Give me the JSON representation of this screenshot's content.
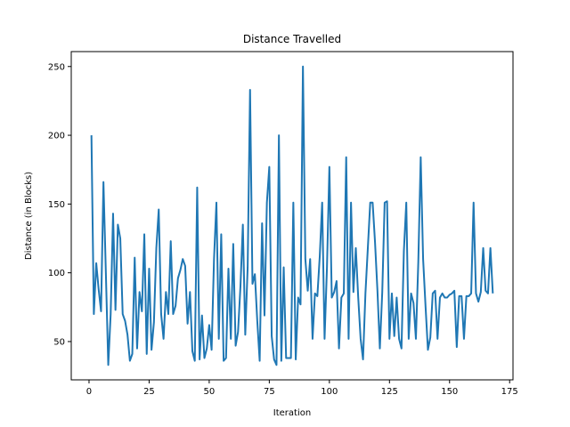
{
  "chart_data": {
    "type": "line",
    "title": "Distance Travelled",
    "xlabel": "Iteration",
    "ylabel": "Distance (in Blocks)",
    "xlim": [
      -7.4,
      176.4
    ],
    "ylim": [
      22.15,
      260.85
    ],
    "xticks": [
      0,
      25,
      50,
      75,
      100,
      125,
      150,
      175
    ],
    "yticks": [
      50,
      100,
      150,
      200,
      250
    ],
    "grid": false,
    "legend": "none",
    "series": [
      {
        "color": "#1f77b4",
        "x": [
          1,
          2,
          3,
          4,
          5,
          6,
          7,
          8,
          9,
          10,
          11,
          12,
          13,
          14,
          15,
          16,
          17,
          18,
          19,
          20,
          21,
          22,
          23,
          24,
          25,
          26,
          27,
          28,
          29,
          30,
          31,
          32,
          33,
          34,
          35,
          36,
          37,
          38,
          39,
          40,
          41,
          42,
          43,
          44,
          45,
          46,
          47,
          48,
          49,
          50,
          51,
          52,
          53,
          54,
          55,
          56,
          57,
          58,
          59,
          60,
          61,
          62,
          63,
          64,
          65,
          66,
          67,
          68,
          69,
          70,
          71,
          72,
          73,
          74,
          75,
          76,
          77,
          78,
          79,
          80,
          81,
          82,
          83,
          84,
          85,
          86,
          87,
          88,
          89,
          90,
          91,
          92,
          93,
          94,
          95,
          96,
          97,
          98,
          99,
          100,
          101,
          102,
          103,
          104,
          105,
          106,
          107,
          108,
          109,
          110,
          111,
          112,
          113,
          114,
          115,
          116,
          117,
          118,
          119,
          120,
          121,
          122,
          123,
          124,
          125,
          126,
          127,
          128,
          129,
          130,
          131,
          132,
          133,
          134,
          135,
          136,
          137,
          138,
          139,
          140,
          141,
          142,
          143,
          144,
          145,
          146,
          147,
          148,
          149,
          150,
          151,
          152,
          153,
          154,
          155,
          156,
          157,
          158,
          159,
          160,
          161,
          162,
          163,
          164,
          165,
          166,
          167,
          168
        ],
        "y": [
          200,
          70,
          107,
          88,
          72,
          166,
          100,
          33,
          70,
          143,
          73,
          135,
          125,
          70,
          65,
          55,
          36,
          41,
          111,
          45,
          86,
          72,
          128,
          41,
          103,
          44,
          64,
          118,
          146,
          70,
          52,
          86,
          70,
          123,
          70,
          76,
          96,
          102,
          110,
          105,
          63,
          86,
          43,
          36,
          162,
          37,
          69,
          38,
          45,
          62,
          44,
          110,
          151,
          52,
          128,
          36,
          38,
          103,
          52,
          121,
          47,
          57,
          90,
          135,
          55,
          104,
          233,
          92,
          99,
          65,
          36,
          136,
          69,
          151,
          177,
          54,
          37,
          33,
          200,
          36,
          104,
          38,
          38,
          38,
          151,
          37,
          82,
          77,
          250,
          110,
          87,
          110,
          52,
          85,
          83,
          112,
          151,
          52,
          104,
          177,
          82,
          86,
          94,
          45,
          82,
          85,
          184,
          52,
          151,
          86,
          118,
          82,
          52,
          37,
          85,
          118,
          151,
          151,
          122,
          87,
          45,
          86,
          151,
          152,
          52,
          85,
          54,
          82,
          52,
          45,
          116,
          151,
          52,
          85,
          78,
          52,
          108,
          184,
          110,
          76,
          44,
          53,
          85,
          87,
          52,
          82,
          85,
          82,
          82,
          84,
          85,
          87,
          46,
          83,
          83,
          52,
          83,
          83,
          85,
          151,
          85,
          79,
          86,
          118,
          87,
          85,
          118,
          85
        ]
      }
    ]
  }
}
